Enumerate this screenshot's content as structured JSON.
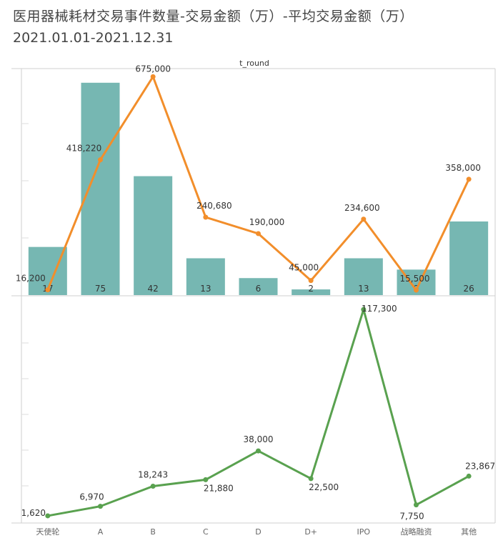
{
  "title": "医用器械耗材交易事件数量-交易金额（万）-平均交易金额（万）",
  "subtitle": "2021.01.01-2021.12.31",
  "chart_data": {
    "type": "bar+line",
    "column_header": "t_round",
    "categories": [
      "天使轮",
      "A",
      "B",
      "C",
      "D",
      "D+",
      "IPO",
      "战略融资",
      "其他"
    ],
    "counts": [
      17,
      75,
      42,
      13,
      6,
      2,
      13,
      9,
      26
    ],
    "amount_labels": [
      "16,200",
      "418,220",
      "675,000",
      "240,680",
      "190,000",
      "45,000",
      "234,600",
      "15,500",
      "358,000"
    ],
    "amounts": [
      16200,
      418220,
      675000,
      240680,
      190000,
      45000,
      234600,
      15500,
      358000
    ],
    "avg_labels": [
      "1,620",
      "6,970",
      "18,243",
      "21,880",
      "38,000",
      "22,500",
      "117,300",
      "7,750",
      "23,867"
    ],
    "averages": [
      1620,
      6970,
      18243,
      21880,
      38000,
      22500,
      117300,
      7750,
      23867
    ],
    "colors": {
      "bar": "#76b7b2",
      "amount_line": "#f28e2b",
      "avg_line": "#59a14f"
    }
  }
}
